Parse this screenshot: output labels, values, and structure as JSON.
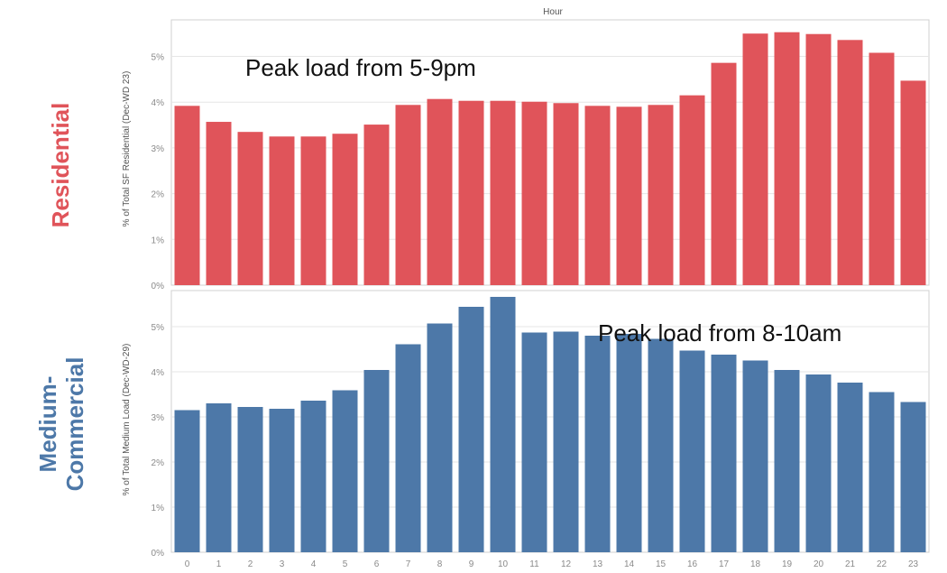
{
  "colors": {
    "residential": "#e0545a",
    "commercial": "#4d78a8",
    "grid": "#e6e6e6",
    "border": "#d0d0d0"
  },
  "chart_data": [
    {
      "type": "bar",
      "panel": "residential",
      "title": "Hour",
      "row_label": "Residential",
      "ylabel": "% of Total SF Residential (Dec-WD 23)",
      "annotation": "Peak load from 5-9pm",
      "categories": [
        "0",
        "1",
        "2",
        "3",
        "4",
        "5",
        "6",
        "7",
        "8",
        "9",
        "10",
        "11",
        "12",
        "13",
        "14",
        "15",
        "16",
        "17",
        "18",
        "19",
        "20",
        "21",
        "22",
        "23"
      ],
      "values": [
        3.92,
        3.57,
        3.35,
        3.25,
        3.25,
        3.31,
        3.51,
        3.94,
        4.07,
        4.03,
        4.03,
        4.01,
        3.98,
        3.92,
        3.9,
        3.94,
        4.15,
        4.86,
        5.5,
        5.53,
        5.49,
        5.36,
        5.08,
        4.47
      ],
      "ylim": [
        0,
        5.8
      ],
      "yticks": [
        "0%",
        "1%",
        "2%",
        "3%",
        "4%",
        "5%"
      ],
      "grid": true
    },
    {
      "type": "bar",
      "panel": "commercial",
      "row_label": [
        "Medium-",
        "Commercial"
      ],
      "ylabel": "% of Total Medium Load (Dec-WD-29)",
      "annotation": "Peak load from 8-10am",
      "categories": [
        "0",
        "1",
        "2",
        "3",
        "4",
        "5",
        "6",
        "7",
        "8",
        "9",
        "10",
        "11",
        "12",
        "13",
        "14",
        "15",
        "16",
        "17",
        "18",
        "19",
        "20",
        "21",
        "22",
        "23"
      ],
      "values": [
        3.15,
        3.3,
        3.22,
        3.18,
        3.36,
        3.59,
        4.04,
        4.61,
        5.07,
        5.44,
        5.66,
        4.87,
        4.89,
        4.8,
        4.84,
        4.73,
        4.47,
        4.38,
        4.25,
        4.04,
        3.94,
        3.76,
        3.55,
        3.33
      ],
      "ylim": [
        0,
        5.8
      ],
      "yticks": [
        "0%",
        "1%",
        "2%",
        "3%",
        "4%",
        "5%"
      ],
      "xticks": [
        "0",
        "1",
        "2",
        "3",
        "4",
        "5",
        "6",
        "7",
        "8",
        "9",
        "10",
        "11",
        "12",
        "13",
        "14",
        "15",
        "16",
        "17",
        "18",
        "19",
        "20",
        "21",
        "22",
        "23"
      ],
      "grid": true
    }
  ]
}
